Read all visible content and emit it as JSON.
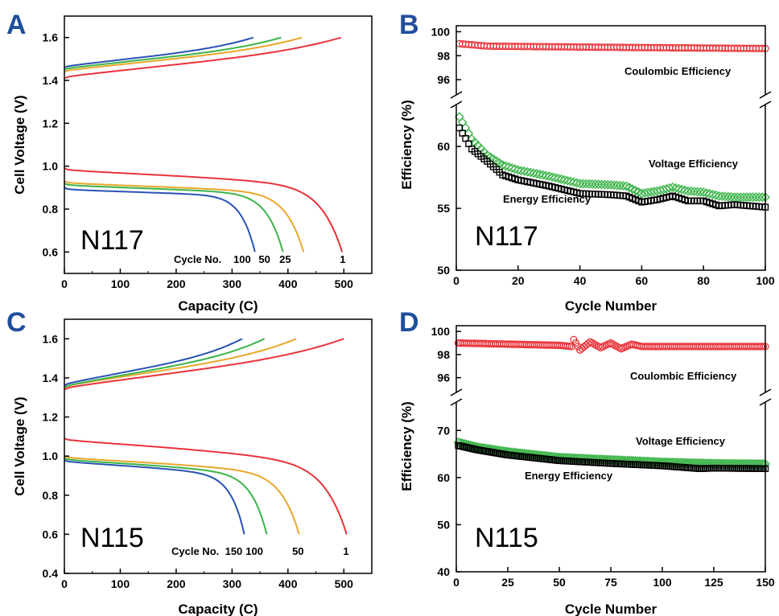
{
  "colors": {
    "letter": "#1f4e9c",
    "red": "#e8333a",
    "orange": "#e8a72b",
    "green": "#3cb449",
    "blue": "#2a52b5",
    "black": "#000000"
  },
  "chart_data": [
    {
      "panel": "A",
      "type": "line",
      "membrane_label": "N117",
      "xlabel": "Capacity (C)",
      "ylabel": "Cell Voltage (V)",
      "xlim": [
        0,
        550
      ],
      "ylim": [
        0.5,
        1.7
      ],
      "xticks": [
        "0",
        "100",
        "200",
        "300",
        "400",
        "500"
      ],
      "yticks": [
        "0.6",
        "0.8",
        "1.0",
        "1.2",
        "1.4",
        "1.6"
      ],
      "cycle_label": "Cycle No.",
      "series": [
        {
          "name": "1",
          "color": "red",
          "charge_end": 495,
          "charge_v": [
            1.41,
            1.6
          ],
          "discharge_end": 497,
          "discharge_v": [
            0.99,
            0.6
          ],
          "label_x": 498
        },
        {
          "name": "25",
          "color": "orange",
          "charge_end": 425,
          "charge_v": [
            1.44,
            1.6
          ],
          "discharge_end": 428,
          "discharge_v": [
            0.93,
            0.6
          ],
          "label_x": 395
        },
        {
          "name": "50",
          "color": "green",
          "charge_end": 388,
          "charge_v": [
            1.45,
            1.6
          ],
          "discharge_end": 391,
          "discharge_v": [
            0.92,
            0.6
          ],
          "label_x": 358
        },
        {
          "name": "100",
          "color": "blue",
          "charge_end": 338,
          "charge_v": [
            1.46,
            1.6
          ],
          "discharge_end": 341,
          "discharge_v": [
            0.9,
            0.6
          ],
          "label_x": 318
        }
      ]
    },
    {
      "panel": "B",
      "type": "scatter",
      "membrane_label": "N117",
      "xlabel": "Cycle Number",
      "ylabel": "Efficiency (%)",
      "xlim": [
        0,
        100
      ],
      "ylim_upper": [
        95,
        100.5
      ],
      "ylim_lower": [
        50,
        63
      ],
      "xticks": [
        "0",
        "20",
        "40",
        "60",
        "80",
        "100"
      ],
      "yticks_upper": [
        "96",
        "98",
        "100"
      ],
      "yticks_lower": [
        "50",
        "55",
        "60"
      ],
      "series": [
        {
          "name": "Coulombic Efficiency",
          "color": "red",
          "marker": "circle",
          "anchors": [
            [
              1,
              99.0
            ],
            [
              10,
              98.8
            ],
            [
              50,
              98.7
            ],
            [
              100,
              98.6
            ]
          ]
        },
        {
          "name": "Voltage Efficiency",
          "color": "green",
          "marker": "diamond",
          "anchors": [
            [
              1,
              62.4
            ],
            [
              5,
              60.6
            ],
            [
              10,
              59.3
            ],
            [
              15,
              58.5
            ],
            [
              20,
              58.1
            ],
            [
              30,
              57.6
            ],
            [
              40,
              57.0
            ],
            [
              50,
              56.9
            ],
            [
              55,
              56.8
            ],
            [
              60,
              56.2
            ],
            [
              65,
              56.4
            ],
            [
              70,
              56.7
            ],
            [
              75,
              56.4
            ],
            [
              80,
              56.3
            ],
            [
              85,
              56.0
            ],
            [
              90,
              55.9
            ],
            [
              100,
              55.9
            ]
          ]
        },
        {
          "name": "Energy Efficiency",
          "color": "black",
          "marker": "square",
          "anchors": [
            [
              1,
              61.5
            ],
            [
              5,
              59.8
            ],
            [
              10,
              58.8
            ],
            [
              15,
              57.7
            ],
            [
              20,
              57.3
            ],
            [
              30,
              56.8
            ],
            [
              40,
              56.2
            ],
            [
              50,
              56.1
            ],
            [
              55,
              56.0
            ],
            [
              60,
              55.5
            ],
            [
              65,
              55.7
            ],
            [
              70,
              56.0
            ],
            [
              75,
              55.6
            ],
            [
              80,
              55.6
            ],
            [
              85,
              55.2
            ],
            [
              90,
              55.3
            ],
            [
              100,
              55.1
            ]
          ]
        }
      ],
      "annotations": {
        "coulombic": "Coulombic Efficiency",
        "voltage": "Voltage Efficiency",
        "energy": "Energy Efficiency"
      }
    },
    {
      "panel": "C",
      "type": "line",
      "membrane_label": "N115",
      "xlabel": "Capacity (C)",
      "ylabel": "Cell Voltage (V)",
      "xlim": [
        0,
        550
      ],
      "ylim": [
        0.4,
        1.7
      ],
      "xticks": [
        "0",
        "100",
        "200",
        "300",
        "400",
        "500"
      ],
      "yticks": [
        "0.4",
        "0.6",
        "0.8",
        "1.0",
        "1.2",
        "1.4",
        "1.6"
      ],
      "cycle_label": "Cycle No.",
      "series": [
        {
          "name": "1",
          "color": "red",
          "charge_end": 500,
          "charge_v": [
            1.34,
            1.6
          ],
          "discharge_end": 505,
          "discharge_v": [
            1.09,
            0.6
          ],
          "label_x": 504
        },
        {
          "name": "50",
          "color": "orange",
          "charge_end": 415,
          "charge_v": [
            1.35,
            1.6
          ],
          "discharge_end": 420,
          "discharge_v": [
            1.0,
            0.6
          ],
          "label_x": 418
        },
        {
          "name": "100",
          "color": "green",
          "charge_end": 358,
          "charge_v": [
            1.35,
            1.6
          ],
          "discharge_end": 362,
          "discharge_v": [
            0.99,
            0.6
          ],
          "label_x": 340
        },
        {
          "name": "150",
          "color": "blue",
          "charge_end": 318,
          "charge_v": [
            1.36,
            1.6
          ],
          "discharge_end": 322,
          "discharge_v": [
            0.98,
            0.6
          ],
          "label_x": 303
        }
      ]
    },
    {
      "panel": "D",
      "type": "scatter",
      "membrane_label": "N115",
      "xlabel": "Cycle Number",
      "ylabel": "Efficiency (%)",
      "xlim": [
        0,
        150
      ],
      "ylim_upper": [
        95,
        100.5
      ],
      "ylim_lower": [
        40,
        75
      ],
      "xticks": [
        "0",
        "25",
        "50",
        "75",
        "100",
        "125",
        "150"
      ],
      "yticks_upper": [
        "96",
        "98",
        "100"
      ],
      "yticks_lower": [
        "40",
        "50",
        "60",
        "70"
      ],
      "series": [
        {
          "name": "Coulombic Efficiency",
          "color": "red",
          "marker": "circle",
          "anchors": [
            [
              1,
              99.0
            ],
            [
              50,
              98.8
            ],
            [
              56,
              98.7
            ],
            [
              57,
              99.3
            ],
            [
              60,
              98.4
            ],
            [
              65,
              99.1
            ],
            [
              70,
              98.6
            ],
            [
              75,
              99.0
            ],
            [
              80,
              98.5
            ],
            [
              85,
              98.9
            ],
            [
              90,
              98.7
            ],
            [
              150,
              98.7
            ]
          ]
        },
        {
          "name": "Voltage Efficiency",
          "color": "green",
          "marker": "diamond",
          "anchors": [
            [
              1,
              67.5
            ],
            [
              10,
              66.5
            ],
            [
              25,
              65.5
            ],
            [
              50,
              64.3
            ],
            [
              75,
              63.8
            ],
            [
              100,
              63.3
            ],
            [
              125,
              63.0
            ],
            [
              150,
              62.9
            ]
          ]
        },
        {
          "name": "Energy Efficiency",
          "color": "black",
          "marker": "square",
          "anchors": [
            [
              1,
              66.8
            ],
            [
              10,
              65.9
            ],
            [
              25,
              64.8
            ],
            [
              50,
              63.6
            ],
            [
              75,
              63.0
            ],
            [
              100,
              62.5
            ],
            [
              118,
              61.9
            ],
            [
              125,
              62.0
            ],
            [
              150,
              61.9
            ]
          ]
        }
      ],
      "annotations": {
        "coulombic": "Coulombic Efficiency",
        "voltage": "Voltage Efficiency",
        "energy": "Energy Efficiency"
      }
    }
  ]
}
